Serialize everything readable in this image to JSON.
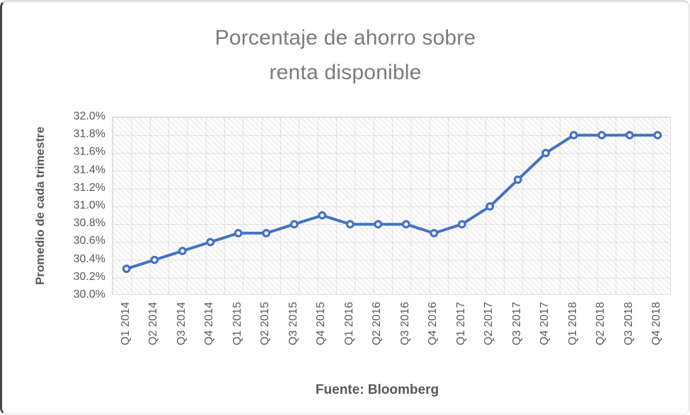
{
  "chart": {
    "title_line1": "Porcentaje de ahorro sobre",
    "title_line2": "renta disponible",
    "y_axis_title": "Promedio de cada trimestre",
    "footer": "Fuente: Bloomberg"
  },
  "colors": {
    "accent_line": "#4472C4",
    "marker_fill": "#ffffff",
    "title_text": "#7b7b7b",
    "axis_text": "#595959",
    "gridline": "#e3e3e3"
  },
  "chart_data": {
    "type": "line",
    "title": "Porcentaje de ahorro sobre renta disponible",
    "xlabel": "",
    "ylabel": "Promedio de cada trimestre",
    "categories": [
      "Q1 2014",
      "Q2 2014",
      "Q3 2014",
      "Q4 2014",
      "Q1 2015",
      "Q2 2015",
      "Q3 2015",
      "Q4 2015",
      "Q1 2016",
      "Q2 2016",
      "Q3 2016",
      "Q4 2016",
      "Q1 2017",
      "Q2 2017",
      "Q3 2017",
      "Q4 2017",
      "Q1 2018",
      "Q2 2018",
      "Q3 2018",
      "Q4 2018"
    ],
    "values": [
      30.3,
      30.4,
      30.5,
      30.6,
      30.7,
      30.7,
      30.8,
      30.9,
      30.8,
      30.8,
      30.8,
      30.7,
      30.8,
      31.0,
      31.3,
      31.6,
      31.8,
      31.8,
      31.8,
      31.8
    ],
    "value_unit": "%",
    "ylim": [
      30.0,
      32.0
    ],
    "y_tick_step": 0.2,
    "y_tick_labels": [
      "32.0%",
      "31.8%",
      "31.6%",
      "31.4%",
      "31.2%",
      "31.0%",
      "30.8%",
      "30.6%",
      "30.4%",
      "30.2%",
      "30.0%"
    ],
    "grid": true,
    "grid_pattern": "diagonal-crosshatch",
    "legend": false,
    "marker": "open-circle",
    "line_color": "#4472C4",
    "source": "Fuente: Bloomberg"
  }
}
